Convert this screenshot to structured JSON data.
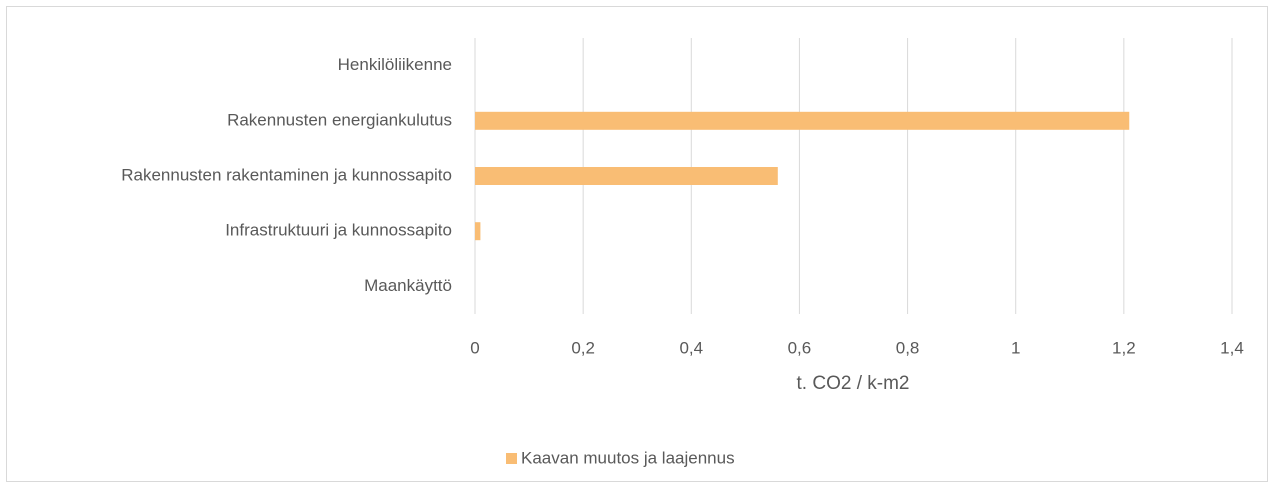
{
  "chart_data": {
    "type": "bar",
    "orientation": "horizontal",
    "categories": [
      "Henkilöliikenne",
      "Rakennusten energiankulutus",
      "Rakennusten rakentaminen ja kunnossapito",
      "Infrastruktuuri ja kunnossapito",
      "Maankäyttö"
    ],
    "series": [
      {
        "name": "Kaavan muutos ja laajennus",
        "color": "#f9bd74",
        "values": [
          0,
          1.21,
          0.56,
          0.01,
          0
        ]
      }
    ],
    "xlabel": "t. CO2 / k-m2",
    "xlim": [
      0,
      1.4
    ],
    "xticks": [
      0,
      {
        "value": 0.2,
        "label": "0,2"
      },
      {
        "value": 0.4,
        "label": "0,4"
      },
      {
        "value": 0.6,
        "label": "0,6"
      },
      {
        "value": 0.8,
        "label": "0,8"
      },
      1,
      {
        "value": 1.2,
        "label": "1,2"
      },
      {
        "value": 1.4,
        "label": "1,4"
      }
    ],
    "grid": true,
    "legend": "bottom"
  }
}
